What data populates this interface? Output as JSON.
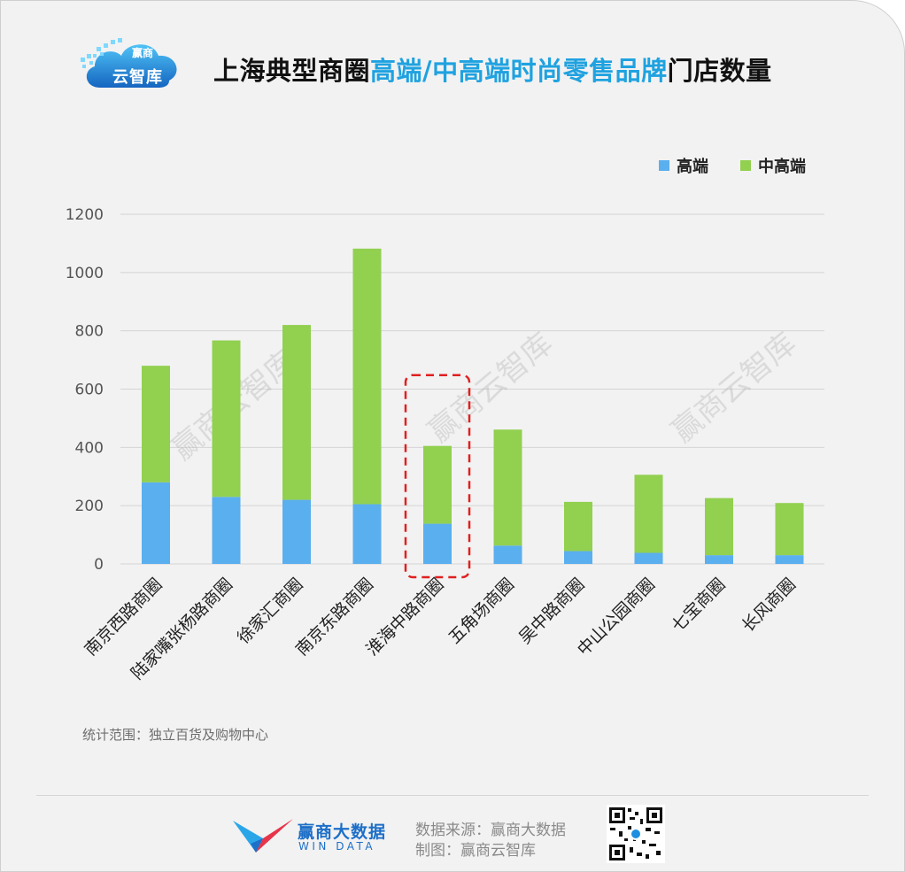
{
  "header": {
    "logo_line1": "赢商",
    "logo_line2": "云智库",
    "title_part1": "上海典型商圈",
    "title_part2": "高端/中高端时尚零售品牌",
    "title_part3": "门店数量"
  },
  "colors": {
    "high_end": "#5aafef",
    "mid_high": "#92d050",
    "title_highlight": "#1fa2e0",
    "highlight_box": "#e02020"
  },
  "chart_data": {
    "type": "bar",
    "stacked": true,
    "categories": [
      "南京西路商圈",
      "陆家嘴张杨路商圈",
      "徐家汇商圈",
      "南京东路商圈",
      "淮海中路商圈",
      "五角场商圈",
      "吴中路商圈",
      "中山公园商圈",
      "七宝商圈",
      "长风商圈"
    ],
    "series": [
      {
        "name": "高端",
        "values": [
          280,
          230,
          220,
          205,
          138,
          63,
          44,
          38,
          30,
          30
        ]
      },
      {
        "name": "中高端",
        "values": [
          400,
          537,
          600,
          877,
          267,
          398,
          169,
          268,
          196,
          179
        ]
      }
    ],
    "yticks": [
      "0",
      "200",
      "400",
      "600",
      "800",
      "1000",
      "1200"
    ],
    "ylim": [
      0,
      1200
    ],
    "grid": true,
    "legend_position": "top-right",
    "highlighted_category": "淮海中路商圈",
    "watermark": "赢商云智库"
  },
  "footnote": "统计范围：独立百货及购物中心",
  "footer": {
    "brand_cn": "赢商大数据",
    "brand_en": "WIN DATA",
    "source": "数据来源：赢商大数据",
    "made_by": "制图：赢商云智库"
  }
}
